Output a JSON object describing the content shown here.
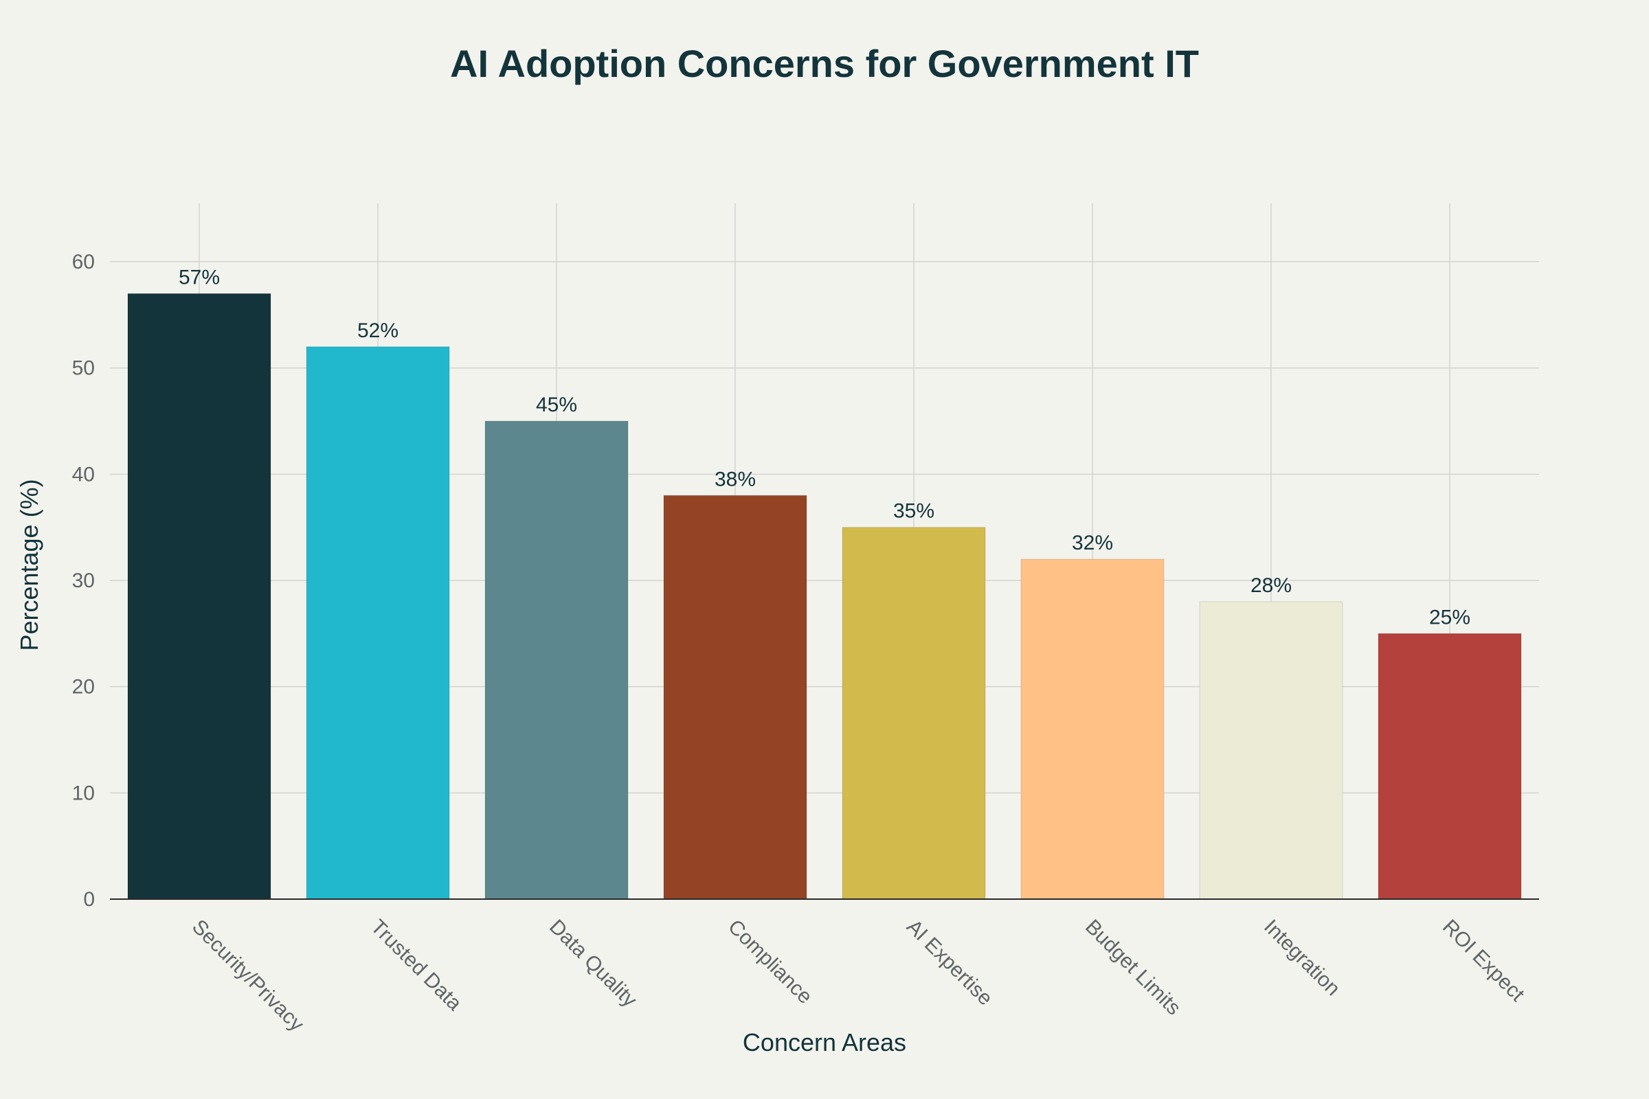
{
  "chart_data": {
    "type": "bar",
    "title": "AI Adoption Concerns for Government IT",
    "xlabel": "Concern Areas",
    "ylabel": "Percentage (%)",
    "categories": [
      "Security/Privacy",
      "Trusted Data",
      "Data Quality",
      "Compliance",
      "AI Expertise",
      "Budget Limits",
      "Integration",
      "ROI Expect"
    ],
    "values": [
      57,
      52,
      45,
      38,
      35,
      32,
      28,
      25
    ],
    "data_labels": [
      "57%",
      "52%",
      "45%",
      "38%",
      "35%",
      "32%",
      "28%",
      "25%"
    ],
    "colors": [
      "#13343b",
      "#21b8cd",
      "#5d878f",
      "#944424",
      "#d2ba4c",
      "#ffc185",
      "#ecebd5",
      "#b4413c"
    ],
    "yticks": [
      0,
      10,
      20,
      30,
      40,
      50,
      60
    ],
    "ylim": [
      0,
      65.5
    ],
    "grid": true,
    "legend": "none"
  }
}
